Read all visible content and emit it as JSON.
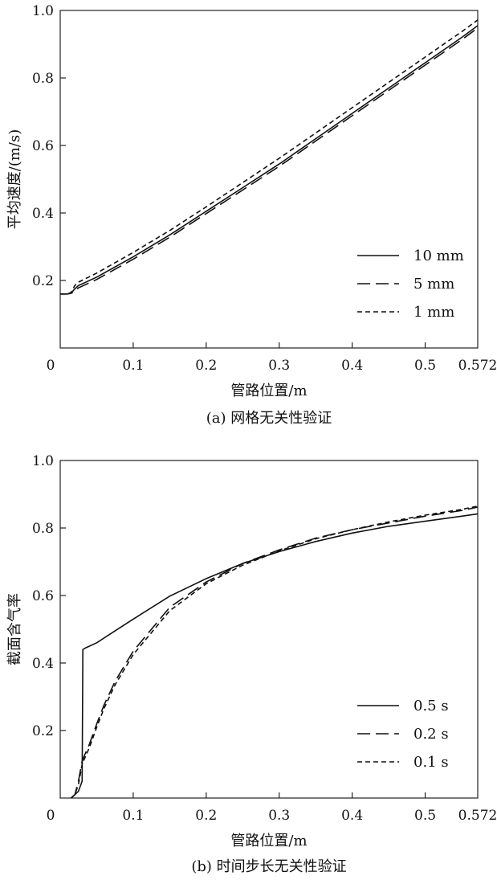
{
  "chart_data": [
    {
      "type": "line",
      "caption": "(a) 网格无关性验证",
      "xlabel": "管路位置/m",
      "ylabel": "平均速度/(m/s)",
      "xlim": [
        0,
        0.572
      ],
      "ylim": [
        0,
        1.0
      ],
      "xticks": [
        0,
        0.1,
        0.2,
        0.3,
        0.4,
        0.5,
        0.572
      ],
      "xtick_labels": [
        "0",
        "0.1",
        "0.2",
        "0.3",
        "0.4",
        "0.5",
        "0.572"
      ],
      "yticks": [
        0.2,
        0.4,
        0.6,
        0.8,
        1.0
      ],
      "ytick_labels": [
        "0.2",
        "0.4",
        "0.6",
        "0.8",
        "1.0"
      ],
      "legend_position": "bottom-right",
      "series": [
        {
          "name": "10 mm",
          "style": "solid",
          "x": [
            0.0,
            0.01,
            0.015,
            0.02,
            0.025,
            0.05,
            0.1,
            0.15,
            0.2,
            0.25,
            0.3,
            0.35,
            0.4,
            0.45,
            0.5,
            0.55,
            0.572
          ],
          "y": [
            0.16,
            0.16,
            0.163,
            0.175,
            0.185,
            0.21,
            0.27,
            0.335,
            0.405,
            0.475,
            0.545,
            0.62,
            0.695,
            0.77,
            0.845,
            0.92,
            0.955
          ]
        },
        {
          "name": "5 mm",
          "style": "long-dash",
          "x": [
            0.0,
            0.01,
            0.015,
            0.02,
            0.025,
            0.05,
            0.1,
            0.15,
            0.2,
            0.25,
            0.3,
            0.35,
            0.4,
            0.45,
            0.5,
            0.55,
            0.572
          ],
          "y": [
            0.16,
            0.16,
            0.162,
            0.168,
            0.178,
            0.203,
            0.263,
            0.328,
            0.398,
            0.468,
            0.538,
            0.613,
            0.688,
            0.763,
            0.838,
            0.913,
            0.948
          ]
        },
        {
          "name": "1 mm",
          "style": "short-dash",
          "x": [
            0.0,
            0.01,
            0.015,
            0.02,
            0.025,
            0.05,
            0.1,
            0.15,
            0.2,
            0.25,
            0.3,
            0.35,
            0.4,
            0.45,
            0.5,
            0.55,
            0.572
          ],
          "y": [
            0.16,
            0.16,
            0.165,
            0.185,
            0.195,
            0.222,
            0.283,
            0.348,
            0.418,
            0.49,
            0.562,
            0.637,
            0.712,
            0.787,
            0.862,
            0.937,
            0.972
          ]
        }
      ]
    },
    {
      "type": "line",
      "caption": "(b) 时间步长无关性验证",
      "xlabel": "管路位置/m",
      "ylabel": "截面含气率",
      "xlim": [
        0,
        0.572
      ],
      "ylim": [
        0,
        1.0
      ],
      "xticks": [
        0,
        0.1,
        0.2,
        0.3,
        0.4,
        0.5,
        0.572
      ],
      "xtick_labels": [
        "0",
        "0.1",
        "0.2",
        "0.3",
        "0.4",
        "0.5",
        "0.572"
      ],
      "yticks": [
        0.2,
        0.4,
        0.6,
        0.8,
        1.0
      ],
      "ytick_labels": [
        "0.2",
        "0.4",
        "0.6",
        "0.8",
        "1.0"
      ],
      "legend_position": "bottom-right",
      "series": [
        {
          "name": "0.5 s",
          "style": "solid",
          "x": [
            0.015,
            0.02,
            0.025,
            0.03,
            0.031,
            0.035,
            0.05,
            0.075,
            0.1,
            0.15,
            0.2,
            0.25,
            0.3,
            0.35,
            0.4,
            0.45,
            0.5,
            0.55,
            0.572
          ],
          "y": [
            0.0,
            0.01,
            0.02,
            0.05,
            0.44,
            0.445,
            0.46,
            0.495,
            0.53,
            0.598,
            0.65,
            0.695,
            0.73,
            0.76,
            0.785,
            0.805,
            0.82,
            0.835,
            0.842
          ]
        },
        {
          "name": "0.2 s",
          "style": "long-dash",
          "x": [
            0.015,
            0.02,
            0.025,
            0.03,
            0.04,
            0.05,
            0.06,
            0.075,
            0.1,
            0.125,
            0.15,
            0.2,
            0.25,
            0.3,
            0.35,
            0.4,
            0.45,
            0.5,
            0.55,
            0.572
          ],
          "y": [
            0.0,
            0.01,
            0.05,
            0.11,
            0.16,
            0.22,
            0.275,
            0.345,
            0.435,
            0.5,
            0.565,
            0.64,
            0.695,
            0.735,
            0.77,
            0.795,
            0.815,
            0.835,
            0.852,
            0.862
          ]
        },
        {
          "name": "0.1 s",
          "style": "short-dash",
          "x": [
            0.015,
            0.02,
            0.025,
            0.03,
            0.04,
            0.05,
            0.06,
            0.075,
            0.1,
            0.125,
            0.15,
            0.2,
            0.25,
            0.3,
            0.35,
            0.4,
            0.45,
            0.5,
            0.55,
            0.572
          ],
          "y": [
            0.0,
            0.01,
            0.04,
            0.1,
            0.15,
            0.21,
            0.265,
            0.335,
            0.425,
            0.49,
            0.555,
            0.635,
            0.69,
            0.732,
            0.768,
            0.795,
            0.818,
            0.838,
            0.855,
            0.865
          ]
        }
      ]
    }
  ]
}
